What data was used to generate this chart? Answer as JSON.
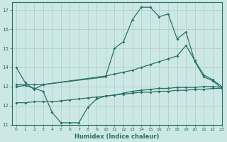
{
  "xlabel": "Humidex (Indice chaleur)",
  "bg_color": "#cce8e4",
  "grid_color": "#aaccca",
  "line_color": "#2a7068",
  "xlim": [
    -0.5,
    23
  ],
  "ylim": [
    11,
    17.4
  ],
  "yticks": [
    11,
    12,
    13,
    14,
    15,
    16,
    17
  ],
  "xticks": [
    0,
    1,
    2,
    3,
    4,
    5,
    6,
    7,
    8,
    9,
    10,
    11,
    12,
    13,
    14,
    15,
    16,
    17,
    18,
    19,
    20,
    21,
    22,
    23
  ],
  "line1_x": [
    0,
    1,
    2,
    3,
    10,
    11,
    12,
    13,
    14,
    15,
    16,
    17,
    18,
    19,
    20,
    21,
    22,
    23
  ],
  "line1_y": [
    14.0,
    13.2,
    12.85,
    13.1,
    13.5,
    15.0,
    15.35,
    16.5,
    17.15,
    17.15,
    16.65,
    16.8,
    15.5,
    15.85,
    14.3,
    13.5,
    13.3,
    12.9
  ],
  "line2_x": [
    0,
    1,
    2,
    3,
    10,
    11,
    12,
    13,
    14,
    15,
    16,
    17,
    18,
    19,
    20,
    21,
    22,
    23
  ],
  "line2_y": [
    13.1,
    13.1,
    13.1,
    13.1,
    13.55,
    13.65,
    13.75,
    13.85,
    14.0,
    14.15,
    14.3,
    14.45,
    14.6,
    15.15,
    14.35,
    13.6,
    13.35,
    13.0
  ],
  "line3_x": [
    0,
    1,
    2,
    3,
    4,
    5,
    6,
    7,
    8,
    9,
    10,
    11,
    12,
    13,
    14,
    15,
    16,
    17,
    18,
    19,
    20,
    21,
    22,
    23
  ],
  "line3_y": [
    13.0,
    13.05,
    12.9,
    12.75,
    11.65,
    11.1,
    11.1,
    11.1,
    11.9,
    12.35,
    12.5,
    12.55,
    12.65,
    12.75,
    12.8,
    12.85,
    12.9,
    12.9,
    12.95,
    12.95,
    12.95,
    13.0,
    13.0,
    12.95
  ],
  "line4_x": [
    0,
    1,
    2,
    3,
    4,
    5,
    6,
    7,
    8,
    9,
    10,
    11,
    12,
    13,
    14,
    15,
    16,
    17,
    18,
    19,
    20,
    21,
    22,
    23
  ],
  "line4_y": [
    12.15,
    12.15,
    12.2,
    12.2,
    12.2,
    12.25,
    12.3,
    12.35,
    12.4,
    12.45,
    12.5,
    12.55,
    12.6,
    12.65,
    12.7,
    12.7,
    12.75,
    12.75,
    12.8,
    12.8,
    12.85,
    12.85,
    12.9,
    12.9
  ]
}
